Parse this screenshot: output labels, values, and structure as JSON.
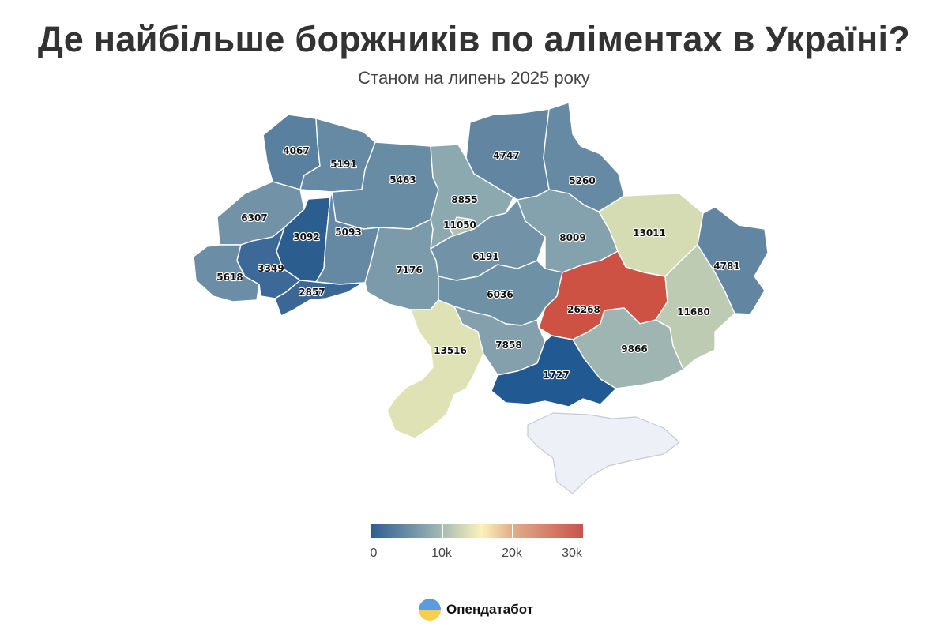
{
  "title": "Де найбільше боржників по аліментах в Україні?",
  "subtitle": "Станом на липень 2025 року",
  "brand": {
    "name": "Опендатабот",
    "logo_icon": "circle-blue-yellow-logo"
  },
  "legend": {
    "scale": "0 to 30k",
    "ticks": [
      "0",
      "10k",
      "20k",
      "30k"
    ],
    "colors": {
      "low": "#2f5e93",
      "mid": "#fbf2bc",
      "high": "#c9534b"
    }
  },
  "map_data": {
    "type": "choropleth",
    "regions": [
      {
        "id": "volyn",
        "value": 4067
      },
      {
        "id": "rivne",
        "value": 5191
      },
      {
        "id": "zhytomyr",
        "value": 5463
      },
      {
        "id": "kyiv-oblast",
        "value": 8855
      },
      {
        "id": "chernihiv",
        "value": 4747
      },
      {
        "id": "sumy",
        "value": 5260
      },
      {
        "id": "lviv",
        "value": 6307
      },
      {
        "id": "ternopil",
        "value": 3092
      },
      {
        "id": "khmelnytskyi",
        "value": 5093
      },
      {
        "id": "kyiv-city",
        "value": 11050
      },
      {
        "id": "zakarpattia",
        "value": 5618
      },
      {
        "id": "ivano-frankivsk",
        "value": 3349
      },
      {
        "id": "chernivtsi",
        "value": 2857
      },
      {
        "id": "vinnytsia",
        "value": 7176
      },
      {
        "id": "cherkasy",
        "value": 6191
      },
      {
        "id": "poltava",
        "value": 8009
      },
      {
        "id": "kharkiv",
        "value": 13011
      },
      {
        "id": "luhansk",
        "value": 4781
      },
      {
        "id": "kirovohrad",
        "value": 6036
      },
      {
        "id": "dnipropetrovsk",
        "value": 26268
      },
      {
        "id": "donetsk",
        "value": 11680
      },
      {
        "id": "odesa",
        "value": 13516
      },
      {
        "id": "mykolaiv",
        "value": 7858
      },
      {
        "id": "zaporizhzhia",
        "value": 9866
      },
      {
        "id": "kherson",
        "value": 1727
      }
    ]
  }
}
